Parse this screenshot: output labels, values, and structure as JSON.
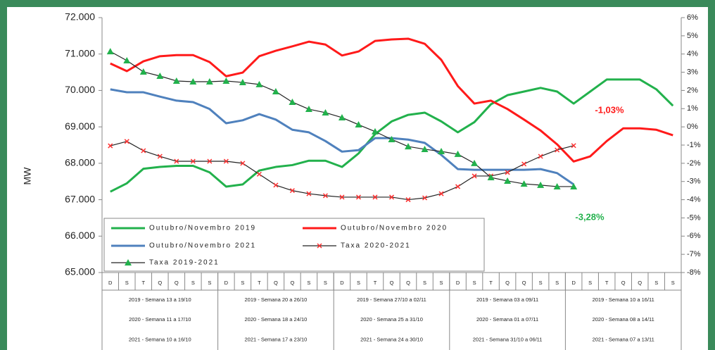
{
  "chart_data": {
    "type": "line",
    "ylabel": "MW",
    "categories": [
      "D",
      "S",
      "T",
      "Q",
      "Q",
      "S",
      "S",
      "D",
      "S",
      "T",
      "Q",
      "Q",
      "S",
      "S",
      "D",
      "S",
      "T",
      "Q",
      "Q",
      "S",
      "S",
      "D",
      "S",
      "T",
      "Q",
      "Q",
      "S",
      "S",
      "D",
      "S",
      "T",
      "Q",
      "Q",
      "S",
      "S"
    ],
    "weeks": [
      [
        "2019 - Semana 13 a 19/10",
        "2020 - Semana 11 a 17/10",
        "2021 - Semana 10 a 16/10"
      ],
      [
        "2019 - Semana 20 a 26/10",
        "2020 - Semana 18 a 24/10",
        "2021 - Semana 17 a 23/10"
      ],
      [
        "2019 - Semana 27/10 a 02/11",
        "2020 - Semana 25 a 31/10",
        "2021 - Semana 24 a 30/10"
      ],
      [
        "2019 - Semana 03 a 09/11",
        "2020 - Semana 01 a 07/11",
        "2021 - Semana 31/10 a 06/11"
      ],
      [
        "2019 - Semana 10 a 16/11",
        "2020 - Semana 08 a 14/11",
        "2021 - Semana 07 a 13/11"
      ]
    ],
    "ylim": [
      65000,
      72000
    ],
    "yticks": [
      {
        "value": 72000,
        "label": "72.000"
      },
      {
        "value": 71000,
        "label": "71.000"
      },
      {
        "value": 70000,
        "label": "70.000"
      },
      {
        "value": 69000,
        "label": "69.000"
      },
      {
        "value": 68000,
        "label": "68.000"
      },
      {
        "value": 67000,
        "label": "67.000"
      },
      {
        "value": 66000,
        "label": "66.000"
      },
      {
        "value": 65000,
        "label": "65.000"
      }
    ],
    "y2lim": [
      -8,
      6
    ],
    "y2ticks": [
      {
        "value": 6,
        "label": "6%"
      },
      {
        "value": 5,
        "label": "5%"
      },
      {
        "value": 4,
        "label": "4%"
      },
      {
        "value": 3,
        "label": "3%"
      },
      {
        "value": 2,
        "label": "2%"
      },
      {
        "value": 1,
        "label": "1%"
      },
      {
        "value": 0,
        "label": "0%"
      },
      {
        "value": -1,
        "label": "-1%"
      },
      {
        "value": -2,
        "label": "-2%"
      },
      {
        "value": -3,
        "label": "-3%"
      },
      {
        "value": -4,
        "label": "-4%"
      },
      {
        "value": -5,
        "label": "-5%"
      },
      {
        "value": -6,
        "label": "-6%"
      },
      {
        "value": -7,
        "label": "-7%"
      },
      {
        "value": -8,
        "label": "-8%"
      }
    ],
    "series": [
      {
        "name": "Outubro/Novembro 2019",
        "color": "#22b14c",
        "marker": "none",
        "values": [
          67220,
          67450,
          67850,
          67900,
          67930,
          67930,
          67750,
          67360,
          67420,
          67800,
          67900,
          67950,
          68070,
          68070,
          67900,
          68270,
          68800,
          69150,
          69330,
          69390,
          69150,
          68850,
          69130,
          69620,
          69870,
          69970,
          70070,
          69970,
          69640,
          69970,
          70300,
          70300,
          70300,
          70030,
          69580
        ]
      },
      {
        "name": "Outubro/Novembro 2020",
        "color": "#ff1a1a",
        "marker": "none",
        "values": [
          70740,
          70530,
          70800,
          70940,
          70970,
          70970,
          70780,
          70390,
          70490,
          70940,
          71090,
          71210,
          71340,
          71260,
          70960,
          71070,
          71360,
          71400,
          71420,
          71280,
          70840,
          70120,
          69640,
          69720,
          69490,
          69200,
          68900,
          68520,
          68050,
          68190,
          68610,
          68960,
          68960,
          68920,
          68770
        ]
      },
      {
        "name": "Outubro/Novembro 2021",
        "color": "#4f81bd",
        "marker": "none",
        "values": [
          70030,
          69950,
          69950,
          69830,
          69720,
          69680,
          69490,
          69100,
          69180,
          69350,
          69200,
          68920,
          68850,
          68610,
          68320,
          68360,
          68690,
          68690,
          68650,
          68560,
          68230,
          67840,
          67820,
          67820,
          67820,
          67820,
          67840,
          67730,
          67420,
          null,
          null,
          null,
          null,
          null,
          null
        ]
      },
      {
        "name": "Taxa 2020-2021",
        "color": "#222222",
        "marker": "x",
        "marker_color": "#ff3030",
        "axis": "y2",
        "values": [
          -1.04,
          -0.8,
          -1.31,
          -1.62,
          -1.89,
          -1.89,
          -1.89,
          -1.89,
          -2.0,
          -2.6,
          -3.2,
          -3.5,
          -3.67,
          -3.78,
          -3.86,
          -3.86,
          -3.86,
          -3.86,
          -4.0,
          -3.9,
          -3.67,
          -3.28,
          -2.7,
          -2.7,
          -2.5,
          -2.04,
          -1.62,
          -1.27,
          -1.03,
          null,
          null,
          null,
          null,
          null,
          null
        ]
      },
      {
        "name": "Taxa 2019-2021",
        "color": "#222222",
        "marker": "triangle",
        "marker_color": "#22b14c",
        "axis": "y2",
        "values": [
          4.14,
          3.64,
          3.02,
          2.79,
          2.52,
          2.48,
          2.48,
          2.52,
          2.44,
          2.33,
          1.94,
          1.36,
          0.97,
          0.78,
          0.51,
          0.12,
          -0.26,
          -0.69,
          -1.08,
          -1.23,
          -1.35,
          -1.5,
          -2.0,
          -2.78,
          -2.97,
          -3.13,
          -3.2,
          -3.28,
          -3.28,
          null,
          null,
          null,
          null,
          null,
          null
        ]
      }
    ],
    "annotations": [
      {
        "text": "-1,03%",
        "color": "#ff1a1a"
      },
      {
        "text": "-3,28%",
        "color": "#22b14c"
      }
    ]
  }
}
